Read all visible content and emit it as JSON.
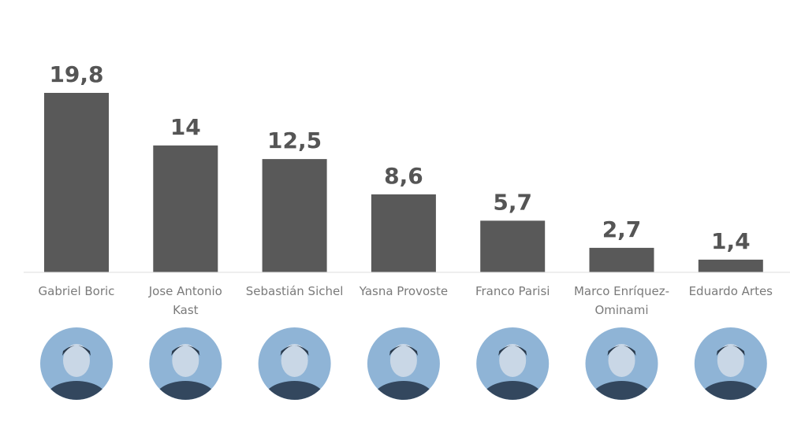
{
  "chart_data": {
    "type": "bar",
    "categories": [
      "Gabriel Boric",
      "Jose Antonio Kast",
      "Sebastián Sichel",
      "Yasna Provoste",
      "Franco Parisi",
      "Marco Enríquez-Ominami",
      "Eduardo Artes"
    ],
    "category_label_lines": [
      [
        "Gabriel Boric"
      ],
      [
        "Jose Antonio",
        "Kast"
      ],
      [
        "Sebastián Sichel"
      ],
      [
        "Yasna Provoste"
      ],
      [
        "Franco Parisi"
      ],
      [
        "Marco Enríquez-",
        "Ominami"
      ],
      [
        "Eduardo Artes"
      ]
    ],
    "values": [
      19.8,
      14,
      12.5,
      8.6,
      5.7,
      2.7,
      1.4
    ],
    "value_labels": [
      "19,8",
      "14",
      "12,5",
      "8,6",
      "5,7",
      "2,7",
      "1,4"
    ],
    "ylim": [
      0,
      20
    ],
    "grid": false,
    "legend": "none",
    "bar_color": "#595959",
    "label_color": "#555555",
    "category_color": "#7a7a7a",
    "portrait_tint": "#8fb4d6"
  },
  "portraits": [
    {
      "name": "Gabriel Boric",
      "icon": "portrait-icon"
    },
    {
      "name": "Jose Antonio Kast",
      "icon": "portrait-icon"
    },
    {
      "name": "Sebastián Sichel",
      "icon": "portrait-icon"
    },
    {
      "name": "Yasna Provoste",
      "icon": "portrait-icon"
    },
    {
      "name": "Franco Parisi",
      "icon": "portrait-icon"
    },
    {
      "name": "Marco Enríquez-Ominami",
      "icon": "portrait-icon"
    },
    {
      "name": "Eduardo Artes",
      "icon": "portrait-icon"
    }
  ]
}
